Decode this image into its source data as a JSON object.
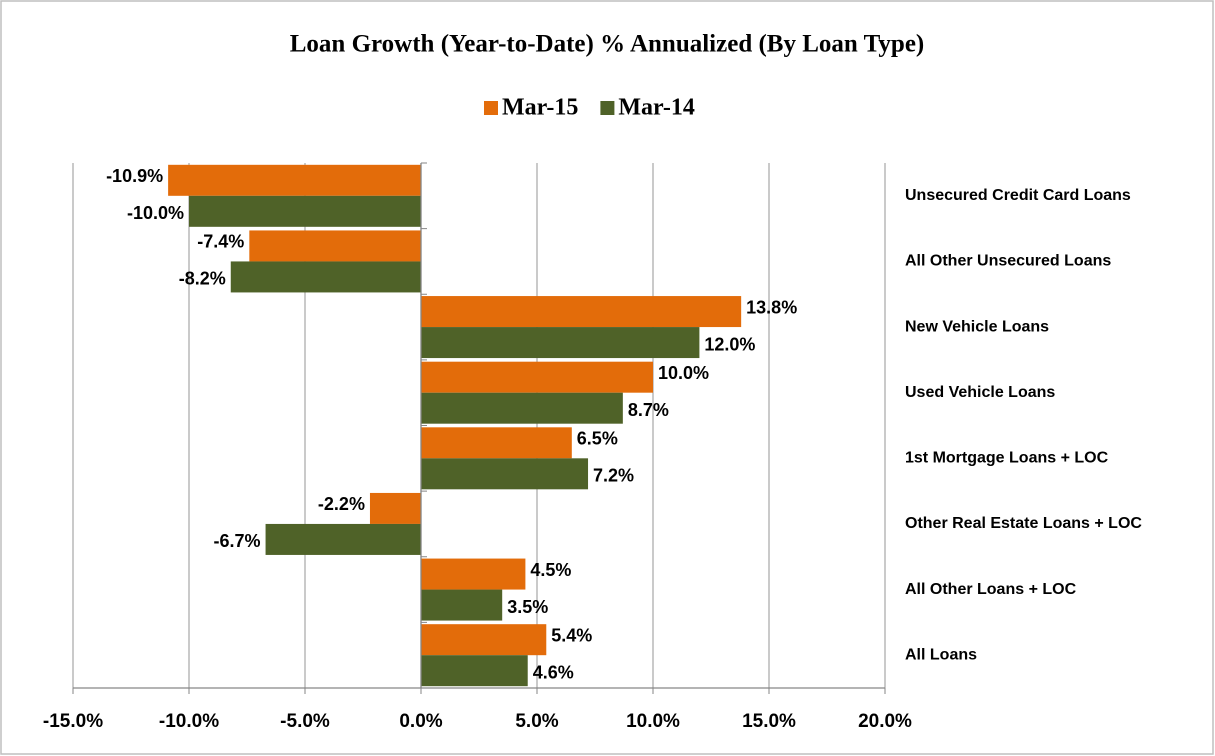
{
  "chart_data": {
    "type": "bar",
    "orientation": "horizontal",
    "title": "Loan Growth (Year-to-Date) % Annualized (By Loan Type)",
    "categories": [
      "Unsecured Credit Card Loans",
      "All Other Unsecured Loans",
      "New Vehicle Loans",
      "Used Vehicle Loans",
      "1st Mortgage Loans + LOC",
      "Other Real Estate Loans + LOC",
      "All Other Loans + LOC",
      "All Loans"
    ],
    "series": [
      {
        "name": "Mar-15",
        "color": "#e36c0a",
        "values": [
          -10.9,
          -7.4,
          13.8,
          10.0,
          6.5,
          -2.2,
          4.5,
          5.4
        ],
        "value_labels": [
          "-10.9%",
          "-7.4%",
          "13.8%",
          "10.0%",
          "6.5%",
          "-2.2%",
          "4.5%",
          "5.4%"
        ]
      },
      {
        "name": "Mar-14",
        "color": "#4f6228",
        "values": [
          -10.0,
          -8.2,
          12.0,
          8.7,
          7.2,
          -6.7,
          3.5,
          4.6
        ],
        "value_labels": [
          "-10.0%",
          "-8.2%",
          "12.0%",
          "8.7%",
          "7.2%",
          "-6.7%",
          "3.5%",
          "4.6%"
        ]
      }
    ],
    "xlim": [
      -15,
      20
    ],
    "xticks": [
      {
        "value": -15,
        "label": "-15.0%"
      },
      {
        "value": -10,
        "label": "-10.0%"
      },
      {
        "value": -5,
        "label": "-5.0%"
      },
      {
        "value": 0,
        "label": "0.0%"
      },
      {
        "value": 5,
        "label": "5.0%"
      },
      {
        "value": 10,
        "label": "10.0%"
      },
      {
        "value": 15,
        "label": "15.0%"
      },
      {
        "value": 20,
        "label": "20.0%"
      }
    ],
    "grid": true,
    "legend": "top"
  }
}
